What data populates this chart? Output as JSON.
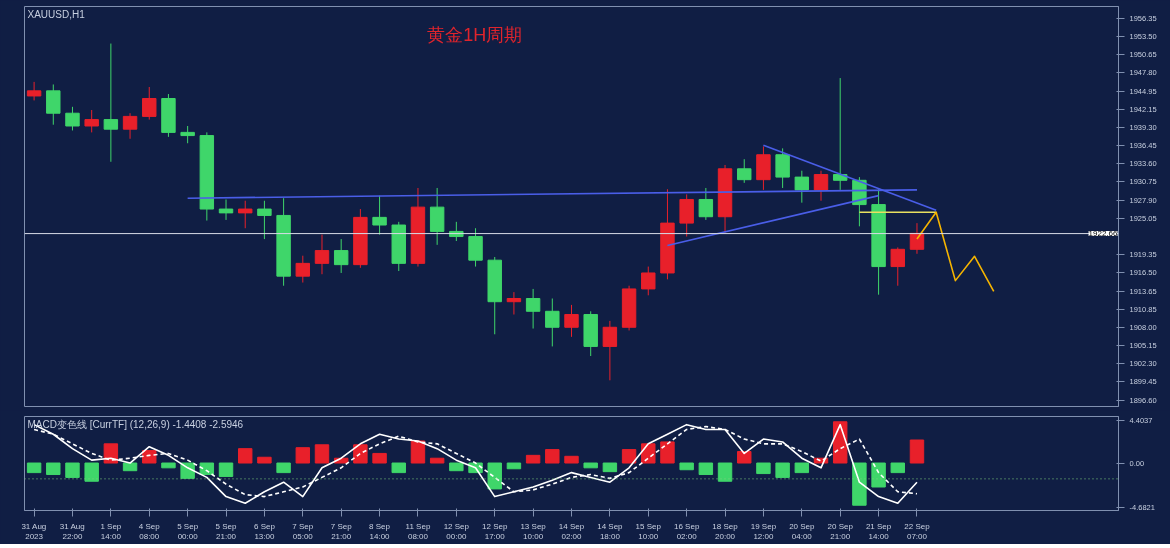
{
  "chart_data": [
    {
      "type": "candlestick",
      "title": "黄金1H周期",
      "annotations": [
        "XAUUSD,H1"
      ],
      "categories": [
        null,
        null,
        null,
        null,
        null,
        null,
        null,
        null,
        null,
        null,
        null,
        null,
        null,
        null,
        null,
        null,
        null,
        null,
        null,
        null,
        null,
        null,
        null,
        null,
        null,
        null,
        null,
        null,
        null,
        null,
        null,
        null,
        null,
        null,
        null,
        null,
        null,
        null,
        null,
        null,
        null,
        null,
        null,
        null,
        null,
        null,
        null,
        null,
        null,
        null,
        null,
        null,
        null,
        null,
        null,
        null,
        null
      ],
      "ohlc": [
        [
          1944.2,
          1946.4,
          1943.5,
          1945.0
        ],
        [
          1945.0,
          1946.0,
          1939.7,
          1941.5
        ],
        [
          1941.5,
          1942.5,
          1938.8,
          1939.5
        ],
        [
          1939.5,
          1942.0,
          1938.5,
          1940.5
        ],
        [
          1940.5,
          1952.4,
          1933.9,
          1939.0
        ],
        [
          1939.0,
          1941.5,
          1937.5,
          1941.0
        ],
        [
          1941.0,
          1945.6,
          1940.5,
          1943.8
        ],
        [
          1943.8,
          1944.5,
          1937.8,
          1938.5
        ],
        [
          1938.5,
          1939.5,
          1936.8,
          1938.0
        ],
        [
          1938.0,
          1938.5,
          1924.7,
          1926.5
        ],
        [
          1926.5,
          1928.0,
          1924.8,
          1925.9
        ],
        [
          1925.9,
          1927.8,
          1923.5,
          1926.5
        ],
        [
          1926.5,
          1927.8,
          1921.8,
          1925.5
        ],
        [
          1925.5,
          1928.2,
          1914.5,
          1916.0
        ],
        [
          1916.0,
          1919.2,
          1915.0,
          1918.0
        ],
        [
          1918.0,
          1922.5,
          1916.3,
          1920.0
        ],
        [
          1920.0,
          1921.8,
          1916.5,
          1917.8
        ],
        [
          1917.8,
          1926.5,
          1917.3,
          1925.2
        ],
        [
          1925.2,
          1928.6,
          1922.5,
          1924.0
        ],
        [
          1924.0,
          1924.5,
          1916.8,
          1918.0
        ],
        [
          1918.0,
          1929.8,
          1917.5,
          1926.8
        ],
        [
          1926.8,
          1929.8,
          1920.9,
          1923.0
        ],
        [
          1923.0,
          1924.5,
          1921.5,
          1922.2
        ],
        [
          1922.2,
          1923.5,
          1917.5,
          1918.5
        ],
        [
          1918.5,
          1919.0,
          1906.9,
          1912.0
        ],
        [
          1912.0,
          1913.5,
          1910.0,
          1912.5
        ],
        [
          1912.5,
          1914.0,
          1907.8,
          1910.5
        ],
        [
          1910.5,
          1912.5,
          1905.0,
          1908.0
        ],
        [
          1908.0,
          1911.5,
          1906.5,
          1910.0
        ],
        [
          1910.0,
          1910.5,
          1903.5,
          1905.0
        ],
        [
          1905.0,
          1909.0,
          1899.7,
          1908.0
        ],
        [
          1908.0,
          1914.5,
          1907.5,
          1914.0
        ],
        [
          1914.0,
          1917.5,
          1913.0,
          1916.5
        ],
        [
          1916.5,
          1929.6,
          1915.5,
          1924.3
        ],
        [
          1924.3,
          1928.8,
          1922.2,
          1928.0
        ],
        [
          1928.0,
          1929.8,
          1924.8,
          1925.3
        ],
        [
          1925.3,
          1933.4,
          1922.8,
          1932.8
        ],
        [
          1932.8,
          1934.3,
          1930.6,
          1931.1
        ],
        [
          1931.1,
          1936.3,
          1929.5,
          1935.0
        ],
        [
          1935.0,
          1936.0,
          1929.8,
          1931.5
        ],
        [
          1931.5,
          1932.5,
          1927.5,
          1929.5
        ],
        [
          1929.5,
          1932.5,
          1927.8,
          1931.9
        ],
        [
          1931.9,
          1947.0,
          1929.5,
          1931.0
        ],
        [
          1931.0,
          1931.5,
          1923.8,
          1927.2
        ],
        [
          1927.2,
          1929.6,
          1913.1,
          1917.5
        ],
        [
          1917.5,
          1920.5,
          1914.5,
          1920.2
        ],
        [
          1920.2,
          1924.3,
          1919.5,
          1922.7
        ],
        null,
        null,
        null,
        null,
        null,
        null,
        null,
        null,
        null,
        null
      ],
      "colors": [
        "#e8202a",
        "#3fd66a",
        "#3fd66a",
        "#e8202a",
        "#3fd66a",
        "#e8202a",
        "#e8202a",
        "#3fd66a",
        "#3fd66a",
        "#3fd66a",
        "#3fd66a",
        "#e8202a",
        "#3fd66a",
        "#3fd66a",
        "#e8202a",
        "#e8202a",
        "#3fd66a",
        "#e8202a",
        "#3fd66a",
        "#3fd66a",
        "#e8202a",
        "#3fd66a",
        "#3fd66a",
        "#3fd66a",
        "#3fd66a",
        "#e8202a",
        "#3fd66a",
        "#3fd66a",
        "#e8202a",
        "#3fd66a",
        "#e8202a",
        "#e8202a",
        "#e8202a",
        "#e8202a",
        "#e8202a",
        "#3fd66a",
        "#e8202a",
        "#3fd66a",
        "#e8202a",
        "#3fd66a",
        "#3fd66a",
        "#e8202a",
        "#3fd66a",
        "#3fd66a",
        "#3fd66a",
        "#e8202a",
        "#e8202a",
        null,
        null,
        null,
        null,
        null,
        null,
        null,
        null,
        null,
        null
      ],
      "series": [
        {
          "type": "line",
          "color": "#4a5ee8",
          "values": [
            null,
            null,
            null,
            null,
            null,
            null,
            null,
            null,
            1928.2,
            null,
            null,
            null,
            null,
            null,
            null,
            null,
            null,
            null,
            null,
            null,
            null,
            null,
            null,
            null,
            null,
            null,
            null,
            null,
            null,
            null,
            null,
            null,
            null,
            null,
            null,
            null,
            null,
            null,
            null,
            null,
            null,
            null,
            null,
            null,
            null,
            null,
            1929.5,
            null,
            null,
            null,
            null,
            null,
            null,
            null,
            null,
            null,
            null
          ]
        },
        {
          "type": "line",
          "color": "#4a5ee8",
          "values": [
            null,
            null,
            null,
            null,
            null,
            null,
            null,
            null,
            null,
            null,
            null,
            null,
            null,
            null,
            null,
            null,
            null,
            null,
            null,
            null,
            null,
            null,
            null,
            null,
            null,
            null,
            null,
            null,
            null,
            null,
            null,
            null,
            null,
            null,
            null,
            null,
            null,
            null,
            1936.5,
            null,
            null,
            null,
            null,
            null,
            null,
            null,
            null,
            1926.3,
            null,
            null,
            null,
            null,
            null,
            null,
            null,
            null,
            null
          ]
        },
        {
          "type": "line",
          "color": "#4a5ee8",
          "values": [
            null,
            null,
            null,
            null,
            null,
            null,
            null,
            null,
            null,
            null,
            null,
            null,
            null,
            null,
            null,
            null,
            null,
            null,
            null,
            null,
            null,
            null,
            null,
            null,
            null,
            null,
            null,
            null,
            null,
            null,
            null,
            null,
            null,
            1920.8,
            null,
            null,
            null,
            null,
            null,
            null,
            null,
            null,
            null,
            null,
            1928.6,
            null,
            null,
            null,
            null,
            null,
            null,
            null,
            null,
            null,
            null,
            null,
            null
          ]
        },
        {
          "type": "line",
          "color": "#e8e060",
          "values": [
            null,
            null,
            null,
            null,
            null,
            null,
            null,
            null,
            null,
            null,
            null,
            null,
            null,
            null,
            null,
            null,
            null,
            null,
            null,
            null,
            null,
            null,
            null,
            null,
            null,
            null,
            null,
            null,
            null,
            null,
            null,
            null,
            null,
            null,
            null,
            null,
            null,
            null,
            null,
            null,
            null,
            null,
            null,
            1926.0,
            null,
            null,
            null,
            1926.0,
            null,
            null,
            null,
            null,
            null,
            null,
            null,
            null,
            null
          ]
        },
        {
          "type": "line",
          "color": "#f5b400",
          "values": [
            null,
            null,
            null,
            null,
            null,
            null,
            null,
            null,
            null,
            null,
            null,
            null,
            null,
            null,
            null,
            null,
            null,
            null,
            null,
            null,
            null,
            null,
            null,
            null,
            null,
            null,
            null,
            null,
            null,
            null,
            null,
            null,
            null,
            null,
            null,
            null,
            null,
            null,
            null,
            null,
            null,
            null,
            null,
            null,
            null,
            null,
            1921.8,
            1926.0,
            1915.3,
            1919.1,
            1913.6,
            null,
            null,
            null,
            null,
            null,
            null
          ]
        }
      ],
      "ylim": [
        1895.6,
        1958.2
      ],
      "yticks": [
        1956.35,
        {
          "value": 1953.5,
          "label": "1953.50"
        },
        1950.65,
        {
          "value": 1947.8,
          "label": "1947.80"
        },
        1944.95,
        1942.15,
        {
          "value": 1939.3,
          "label": "1939.30"
        },
        1936.45,
        {
          "value": 1933.6,
          "label": "1933.60"
        },
        1930.75,
        {
          "value": 1927.9,
          "label": "1927.90"
        },
        1925.05,
        1919.35,
        {
          "value": 1916.5,
          "label": "1916.50"
        },
        1913.65,
        1910.85,
        {
          "value": 1908.0,
          "label": "1908.00"
        },
        1905.15,
        {
          "value": 1902.3,
          "label": "1902.30"
        },
        1899.45,
        {
          "value": 1896.6,
          "label": "1896.60"
        }
      ],
      "tick_labels": "y",
      "ref_lines": [
        {
          "axis": "y",
          "value": 1922.66,
          "label": "1922.66",
          "color": "#d8dce8"
        }
      ]
    },
    {
      "type": "bar",
      "annotations": [
        "MACD变色线 [CurrTF] (12,26,9) -1.4408 -2.5946"
      ],
      "categories": [
        "31 Aug 2023",
        null,
        "31 Aug 22:00",
        null,
        "1 Sep 14:00",
        null,
        "4 Sep 08:00",
        null,
        "5 Sep 00:00",
        null,
        "5 Sep 21:00",
        null,
        "6 Sep 13:00",
        null,
        "7 Sep 05:00",
        null,
        "7 Sep 21:00",
        null,
        "8 Sep 14:00",
        null,
        "11 Sep 08:00",
        null,
        "12 Sep 00:00",
        null,
        "12 Sep 17:00",
        null,
        "13 Sep 10:00",
        null,
        "14 Sep 02:00",
        null,
        "14 Sep 18:00",
        null,
        "15 Sep 10:00",
        null,
        "16 Sep 02:00",
        null,
        "18 Sep 20:00",
        null,
        "19 Sep 12:00",
        null,
        "20 Sep 04:00",
        null,
        "20 Sep 21:00",
        null,
        "21 Sep 14:00",
        null,
        "22 Sep 07:00",
        null,
        null,
        null,
        null,
        null,
        null,
        null,
        null,
        null,
        null
      ],
      "series": [
        {
          "colors": [
            "#3fd66a",
            "#3fd66a",
            "#3fd66a",
            "#3fd66a",
            "#e8202a",
            "#3fd66a",
            "#e8202a",
            "#3fd66a",
            "#3fd66a",
            "#3fd66a",
            "#3fd66a",
            "#e8202a",
            "#e8202a",
            "#3fd66a",
            "#e8202a",
            "#e8202a",
            "#e8202a",
            "#e8202a",
            "#e8202a",
            "#3fd66a",
            "#e8202a",
            "#e8202a",
            "#3fd66a",
            "#3fd66a",
            "#3fd66a",
            "#3fd66a",
            "#e8202a",
            "#e8202a",
            "#e8202a",
            "#3fd66a",
            "#3fd66a",
            "#e8202a",
            "#e8202a",
            "#e8202a",
            "#3fd66a",
            "#3fd66a",
            "#3fd66a",
            "#e8202a",
            "#3fd66a",
            "#3fd66a",
            "#3fd66a",
            "#e8202a",
            "#e8202a",
            "#3fd66a",
            "#3fd66a",
            "#3fd66a",
            "#e8202a",
            null,
            null,
            null,
            null,
            null,
            null,
            null,
            null,
            null,
            null
          ],
          "values": [
            -1.0,
            -1.2,
            -1.5,
            -1.9,
            2.0,
            -0.8,
            1.3,
            -0.5,
            -1.6,
            -1.2,
            -1.4,
            1.5,
            0.6,
            -1.0,
            1.6,
            1.9,
            0.5,
            1.9,
            1.0,
            -1.0,
            2.3,
            0.5,
            -0.8,
            -1.0,
            -2.7,
            -0.6,
            0.8,
            1.4,
            0.7,
            -0.5,
            -0.9,
            1.4,
            2.0,
            2.2,
            -0.7,
            -1.2,
            -1.9,
            1.2,
            -1.1,
            -1.5,
            -1.0,
            0.5,
            4.3,
            -4.4,
            -2.5,
            -1.0,
            2.4,
            null,
            null,
            null,
            null,
            null,
            null,
            null,
            null,
            null,
            null
          ]
        },
        {
          "type": "line",
          "color": "#ffffff",
          "values": [
            4.0,
            3.0,
            1.5,
            0.3,
            0.5,
            0.0,
            1.7,
            0.8,
            -0.5,
            -1.5,
            -3.5,
            -4.2,
            -3.0,
            -2.0,
            -3.5,
            -0.5,
            0.5,
            2.0,
            3.0,
            2.5,
            2.3,
            1.5,
            0.3,
            -0.5,
            -3.5,
            -3.0,
            -2.5,
            -1.8,
            -1.0,
            -1.5,
            -2.0,
            -0.5,
            2.0,
            3.0,
            4.0,
            3.5,
            3.5,
            1.0,
            2.5,
            2.2,
            0.5,
            -0.5,
            4.0,
            -2.0,
            -3.5,
            -4.2,
            -2.0,
            null,
            null,
            null,
            null,
            null,
            null,
            null,
            null,
            null,
            null
          ]
        },
        {
          "type": "line",
          "color": "#ffffff",
          "line_style": "dashed",
          "values": [
            3.5,
            3.0,
            2.0,
            1.0,
            0.3,
            0.5,
            0.8,
            1.0,
            0.3,
            -0.8,
            -2.2,
            -3.3,
            -3.5,
            -3.0,
            -2.5,
            -1.5,
            -0.5,
            1.0,
            2.0,
            2.8,
            2.2,
            2.0,
            1.0,
            0.0,
            -1.5,
            -3.0,
            -2.8,
            -2.2,
            -1.5,
            -1.2,
            -1.6,
            -1.0,
            0.5,
            2.0,
            3.5,
            3.8,
            3.5,
            2.5,
            2.0,
            2.0,
            1.2,
            0.2,
            1.5,
            2.5,
            -1.0,
            -3.0,
            -3.2,
            null,
            null,
            null,
            null,
            null,
            null,
            null,
            null,
            null,
            null
          ]
        }
      ],
      "ylim": [
        -4.95,
        4.85
      ],
      "yticks": [
        4.4037,
        {
          "value": 0,
          "label": "0.00"
        },
        -4.6821
      ],
      "ref_lines": [
        {
          "axis": "y",
          "value": -1.65,
          "color": "#7fd07f",
          "line_style": "dotted"
        }
      ]
    }
  ]
}
